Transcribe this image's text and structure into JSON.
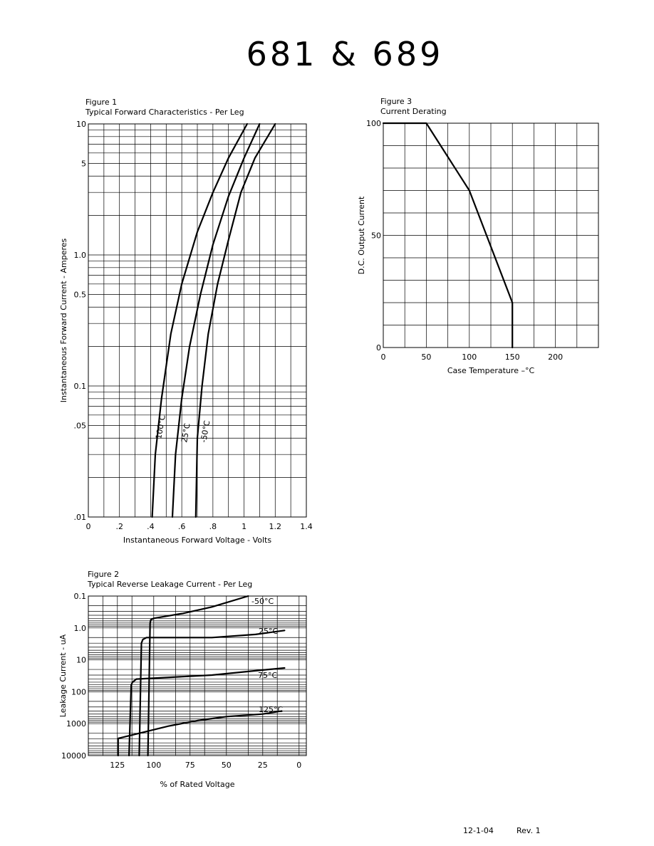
{
  "page": {
    "title": "681 & 689",
    "footer_date": "12-1-04",
    "footer_rev": "Rev. 1"
  },
  "chart_data": [
    {
      "id": "fig1",
      "type": "line",
      "figure_label": "Figure 1",
      "title": "Typical Forward Characteristics - Per Leg",
      "xlabel": "Instantaneous Forward Voltage - Volts",
      "ylabel": "Instantaneous Forward Current  -  Amperes",
      "x_scale": "linear",
      "y_scale": "log",
      "xlim": [
        0,
        1.4
      ],
      "ylim": [
        0.01,
        10
      ],
      "x_ticks": [
        0,
        0.2,
        0.4,
        0.6,
        0.8,
        1.0,
        1.2,
        1.4
      ],
      "x_tick_labels": [
        "0",
        ".2",
        ".4",
        ".6",
        ".8",
        "1",
        "1.2",
        "1.4"
      ],
      "y_ticks": [
        0.01,
        0.05,
        0.1,
        0.5,
        1.0,
        5,
        10
      ],
      "y_tick_labels": [
        ".01",
        ".05",
        "0.1",
        "0.5",
        "1.0",
        "5",
        "10"
      ],
      "grid": true,
      "series": [
        {
          "name": "100°C",
          "x": [
            0.41,
            0.43,
            0.47,
            0.53,
            0.6,
            0.7,
            0.8,
            0.9,
            1.02
          ],
          "y": [
            0.01,
            0.03,
            0.08,
            0.25,
            0.6,
            1.5,
            3,
            5.5,
            10
          ]
        },
        {
          "name": "25°C",
          "x": [
            0.54,
            0.56,
            0.6,
            0.65,
            0.72,
            0.8,
            0.9,
            1.0,
            1.1
          ],
          "y": [
            0.01,
            0.03,
            0.08,
            0.2,
            0.5,
            1.2,
            2.8,
            5.5,
            10
          ]
        },
        {
          "name": "-50°C",
          "x": [
            0.69,
            0.7,
            0.73,
            0.77,
            0.83,
            0.9,
            0.98,
            1.07,
            1.2
          ],
          "y": [
            0.01,
            0.04,
            0.1,
            0.25,
            0.6,
            1.3,
            3,
            5.5,
            10
          ]
        }
      ]
    },
    {
      "id": "fig3",
      "type": "line",
      "figure_label": "Figure 3",
      "title": "Current Derating",
      "xlabel": "Case Temperature  –°C",
      "ylabel": "D.C. Output Current",
      "x_scale": "linear",
      "y_scale": "linear",
      "xlim": [
        0,
        250
      ],
      "ylim": [
        0,
        100
      ],
      "x_ticks": [
        0,
        50,
        100,
        150,
        200
      ],
      "x_tick_labels": [
        "0",
        "50",
        "100",
        "150",
        "200"
      ],
      "y_ticks": [
        0,
        50,
        100
      ],
      "y_tick_labels": [
        "0",
        "50",
        "100"
      ],
      "grid": true,
      "series": [
        {
          "x": [
            0,
            50,
            100,
            150,
            150
          ],
          "y": [
            100,
            100,
            70,
            20,
            0
          ]
        }
      ]
    },
    {
      "id": "fig2",
      "type": "line",
      "figure_label": "Figure 2",
      "title": "Typical Reverse Leakage Current - Per Leg",
      "xlabel": "% of Rated Voltage",
      "ylabel": "Leakage Current - uA",
      "x_scale": "linear",
      "x_reversed": true,
      "y_scale": "log",
      "y_reversed": true,
      "xlim": [
        145,
        -5
      ],
      "ylim": [
        0.1,
        10000
      ],
      "x_ticks": [
        125,
        100,
        75,
        50,
        25,
        0
      ],
      "x_tick_labels": [
        "125",
        "100",
        "75",
        "50",
        "25",
        "0"
      ],
      "y_ticks": [
        0.1,
        1,
        10,
        100,
        1000,
        10000
      ],
      "y_tick_labels": [
        "0.1",
        "1.0",
        "10",
        "100",
        "1000",
        "10000"
      ],
      "grid": true,
      "series": [
        {
          "name": "-50°C",
          "x": [
            104,
            102.5,
            102,
            100,
            80,
            60,
            35
          ],
          "y": [
            10000,
            0.7,
            0.55,
            0.5,
            0.35,
            0.22,
            0.1
          ]
        },
        {
          "name": "25°C",
          "x": [
            110,
            108.5,
            107.5,
            105,
            60,
            30,
            10
          ],
          "y": [
            10000,
            3,
            2.3,
            2,
            2,
            1.6,
            1.2
          ]
        },
        {
          "name": "75°C",
          "x": [
            117,
            115.5,
            114.5,
            112,
            60,
            30,
            10
          ],
          "y": [
            10000,
            60,
            50,
            40,
            30,
            22,
            18
          ]
        },
        {
          "name": "125°C",
          "x": [
            124.5,
            124.5,
            110,
            90,
            70,
            50,
            25,
            12
          ],
          "y": [
            10000,
            2900,
            2000,
            1200,
            800,
            600,
            500,
            400
          ]
        }
      ]
    }
  ]
}
